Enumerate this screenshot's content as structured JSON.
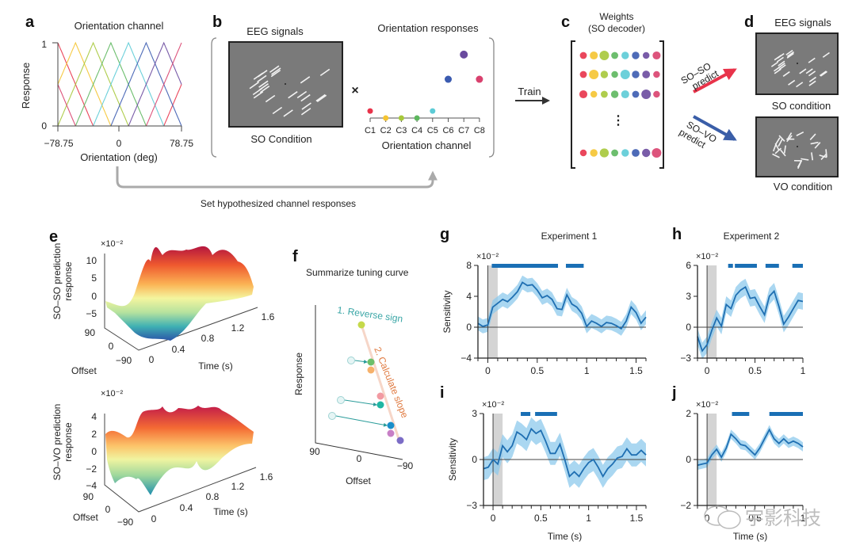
{
  "panels": {
    "a": {
      "label": "a",
      "title": "Orientation channel",
      "ylabel": "Response",
      "xlabel": "Orientation (deg)",
      "xticks": [
        "−78.75",
        "0",
        "78.75"
      ],
      "yticks": [
        "0",
        "1"
      ]
    },
    "b": {
      "label": "b",
      "eeg_title": "EEG signals",
      "eeg_caption": "SO Condition",
      "times": "×",
      "resp_title": "Orientation responses",
      "resp_xlabel": "Orientation channel",
      "channels": [
        "C1",
        "C2",
        "C3",
        "C4",
        "C5",
        "C6",
        "C7",
        "C8"
      ],
      "feedback_label": "Set hypothesized channel responses"
    },
    "train": {
      "label": "Train"
    },
    "c": {
      "label": "c",
      "title_line1": "Weights",
      "title_line2": "(SO decoder)",
      "ellipsis": "⋮"
    },
    "d": {
      "label": "d",
      "title": "EEG signals",
      "so_caption": "SO condition",
      "vo_caption": "VO condition",
      "arrow_so_line1": "SO–SO",
      "arrow_so_line2": "predict",
      "arrow_vo_line1": "SO–VO",
      "arrow_vo_line2": "predict"
    },
    "e": {
      "label": "e",
      "top_ylabel1": "SO–SO prediction",
      "top_ylabel2": "response",
      "top_scale": "×10⁻²",
      "top_zticks": [
        "10",
        "5",
        "0",
        "−5"
      ],
      "bottom_ylabel1": "SO–VO prediction",
      "bottom_ylabel2": "response",
      "bottom_scale": "×10⁻²",
      "bottom_zticks": [
        "4",
        "2",
        "0",
        "−2",
        "−4"
      ],
      "offset_label": "Offset",
      "offset_ticks": [
        "90",
        "0",
        "−90"
      ],
      "time_label": "Time (s)",
      "time_ticks": [
        "0",
        "0.4",
        "0.8",
        "1.2",
        "1.6"
      ]
    },
    "f": {
      "label": "f",
      "title": "Summarize tuning curve",
      "step1": "1. Reverse sign",
      "step2": "2. Calculate slope",
      "ylabel": "Response",
      "xlabel": "Offset",
      "xticks": [
        "90",
        "0",
        "−90"
      ]
    },
    "g": {
      "label": "g",
      "title": "Experiment 1"
    },
    "h": {
      "label": "h",
      "title": "Experiment 2"
    },
    "i": {
      "label": "i"
    },
    "j": {
      "label": "j"
    }
  },
  "colors": {
    "red": "#e8334a",
    "blue": "#3a5ea8",
    "line": "#1f6fb2",
    "band": "#8ec9ec",
    "sig": "#1a6fb5",
    "gray_box": "#7a7a7a"
  },
  "watermark": {
    "text": "宇影科技"
  },
  "chart_data": [
    {
      "id": "a",
      "type": "line",
      "title": "Orientation channel",
      "xlabel": "Orientation (deg)",
      "ylabel": "Response",
      "xlim": [
        -78.75,
        78.75
      ],
      "ylim": [
        0,
        1
      ],
      "series": [
        {
          "name": "C1",
          "peak": -78.75,
          "color": "#e8334a"
        },
        {
          "name": "C2",
          "peak": -56.25,
          "color": "#f5c431"
        },
        {
          "name": "C3",
          "peak": -33.75,
          "color": "#a6c83a"
        },
        {
          "name": "C4",
          "peak": -11.25,
          "color": "#5db75e"
        },
        {
          "name": "C5",
          "peak": 11.25,
          "color": "#5ccbd6"
        },
        {
          "name": "C6",
          "peak": 33.75,
          "color": "#3b5bb0"
        },
        {
          "name": "C7",
          "peak": 56.25,
          "color": "#6a4a9e"
        },
        {
          "name": "C8",
          "peak": 78.75,
          "color": "#d9416e"
        }
      ]
    },
    {
      "id": "b",
      "type": "scatter",
      "title": "Orientation responses",
      "xlabel": "Orientation channel",
      "categories": [
        "C1",
        "C2",
        "C3",
        "C4",
        "C5",
        "C6",
        "C7",
        "C8"
      ],
      "values": [
        0.1,
        0.0,
        0.0,
        0.0,
        0.1,
        0.55,
        0.9,
        0.55
      ],
      "colors": [
        "#e8334a",
        "#f5c431",
        "#a6c83a",
        "#5db75e",
        "#5ccbd6",
        "#3b5bb0",
        "#6a4a9e",
        "#d9416e"
      ]
    },
    {
      "id": "c",
      "type": "scatter",
      "title": "Weights (SO decoder)",
      "rows": [
        [
          0.5,
          0.7,
          1.0,
          0.5,
          0.6,
          0.6,
          0.45,
          0.7
        ],
        [
          0.5,
          1.0,
          0.6,
          0.45,
          1.0,
          0.6,
          0.65,
          0.45
        ],
        [
          0.7,
          0.45,
          0.5,
          0.6,
          0.7,
          0.5,
          1.0,
          0.45
        ],
        [
          0.45,
          0.6,
          0.9,
          0.5,
          0.6,
          0.65,
          0.75,
          1.0
        ]
      ],
      "colors": [
        "#e8334a",
        "#f5c431",
        "#a6c83a",
        "#5db75e",
        "#5ccbd6",
        "#3b5bb0",
        "#6a4a9e",
        "#d9416e"
      ]
    },
    {
      "id": "g",
      "type": "line",
      "title": "Experiment 1",
      "xlabel": "",
      "ylabel": "Sensitivity",
      "scale": "×10⁻²",
      "xlim": [
        -0.1,
        1.6
      ],
      "ylim": [
        -4,
        8
      ],
      "xticks": [
        0,
        0.5,
        1,
        1.5
      ],
      "yticks": [
        -4,
        0,
        4,
        8
      ],
      "x": [
        -0.1,
        -0.05,
        0,
        0.05,
        0.1,
        0.15,
        0.2,
        0.25,
        0.3,
        0.35,
        0.4,
        0.45,
        0.5,
        0.55,
        0.6,
        0.65,
        0.7,
        0.75,
        0.8,
        0.85,
        0.9,
        0.95,
        1.0,
        1.05,
        1.1,
        1.15,
        1.2,
        1.25,
        1.3,
        1.35,
        1.4,
        1.45,
        1.5,
        1.55,
        1.6
      ],
      "y": [
        0.5,
        0.1,
        0.3,
        2.6,
        3.1,
        3.6,
        3.3,
        3.9,
        4.6,
        5.8,
        5.4,
        5.5,
        4.8,
        3.8,
        4.1,
        3.6,
        2.4,
        2.3,
        4.2,
        3.0,
        2.6,
        1.8,
        0.1,
        0.8,
        0.5,
        0.1,
        0.6,
        0.5,
        0.2,
        -0.2,
        0.8,
        2.6,
        1.9,
        0.5,
        1.3
      ],
      "band": 0.9,
      "significance": [
        [
          0.04,
          0.71
        ],
        [
          0.79,
          0.97
        ]
      ],
      "shaded_window": [
        0,
        0.1
      ]
    },
    {
      "id": "h",
      "type": "line",
      "title": "Experiment 2",
      "xlabel": "",
      "ylabel": "",
      "scale": "×10⁻²",
      "xlim": [
        -0.1,
        1.0
      ],
      "ylim": [
        -3,
        6
      ],
      "xticks": [
        0,
        0.5,
        1
      ],
      "yticks": [
        -3,
        0,
        3,
        6
      ],
      "x": [
        -0.1,
        -0.05,
        0,
        0.05,
        0.1,
        0.15,
        0.2,
        0.25,
        0.3,
        0.35,
        0.4,
        0.45,
        0.5,
        0.55,
        0.6,
        0.65,
        0.7,
        0.75,
        0.8,
        0.85,
        0.9,
        0.95,
        1.0
      ],
      "y": [
        -0.9,
        -2.3,
        -1.7,
        -0.3,
        0.9,
        0.1,
        2.2,
        1.8,
        3.1,
        3.6,
        3.9,
        2.8,
        2.9,
        2.0,
        1.2,
        3.0,
        3.5,
        2.0,
        0.3,
        1.0,
        1.8,
        2.6,
        2.5
      ],
      "band": 0.8,
      "significance": [
        [
          0.22,
          0.27
        ],
        [
          0.29,
          0.52
        ],
        [
          0.61,
          0.75
        ],
        [
          0.89,
          1.0
        ]
      ],
      "shaded_window": [
        0,
        0.1
      ]
    },
    {
      "id": "i",
      "type": "line",
      "xlabel": "Time (s)",
      "ylabel": "Sensitivity",
      "scale": "×10⁻²",
      "xlim": [
        -0.1,
        1.6
      ],
      "ylim": [
        -3,
        3
      ],
      "xticks": [
        0,
        0.5,
        1,
        1.5
      ],
      "yticks": [
        -3,
        0,
        3
      ],
      "x": [
        -0.1,
        -0.05,
        0,
        0.05,
        0.1,
        0.15,
        0.2,
        0.25,
        0.3,
        0.35,
        0.4,
        0.45,
        0.5,
        0.55,
        0.6,
        0.65,
        0.7,
        0.75,
        0.8,
        0.85,
        0.9,
        0.95,
        1.0,
        1.05,
        1.1,
        1.15,
        1.2,
        1.25,
        1.3,
        1.35,
        1.4,
        1.45,
        1.5,
        1.55,
        1.6
      ],
      "y": [
        -0.6,
        -0.5,
        0.0,
        -0.3,
        0.9,
        0.5,
        0.9,
        1.8,
        1.6,
        1.3,
        2.0,
        1.7,
        1.9,
        1.2,
        0.4,
        0.4,
        1.0,
        0.0,
        -1.1,
        -0.8,
        -1.1,
        -0.6,
        -0.2,
        0.0,
        -0.5,
        -1.1,
        -0.6,
        -0.3,
        0.1,
        0.2,
        0.7,
        0.3,
        0.3,
        0.6,
        0.3
      ],
      "band": 0.75,
      "significance": [
        [
          0.29,
          0.39
        ],
        [
          0.44,
          0.67
        ]
      ],
      "shaded_window": [
        0,
        0.1
      ]
    },
    {
      "id": "j",
      "type": "line",
      "xlabel": "Time (s)",
      "ylabel": "",
      "scale": "×10⁻²",
      "xlim": [
        -0.1,
        1.0
      ],
      "ylim": [
        -2,
        2
      ],
      "xticks": [
        0,
        0.5,
        1
      ],
      "yticks": [
        -2,
        0,
        2
      ],
      "x": [
        -0.1,
        -0.05,
        0,
        0.05,
        0.1,
        0.15,
        0.2,
        0.25,
        0.3,
        0.35,
        0.4,
        0.45,
        0.5,
        0.55,
        0.6,
        0.65,
        0.7,
        0.75,
        0.8,
        0.85,
        0.9,
        0.95,
        1.0
      ],
      "y": [
        -0.25,
        -0.2,
        -0.15,
        0.2,
        0.45,
        0.1,
        0.5,
        1.1,
        0.9,
        0.65,
        0.6,
        0.4,
        0.2,
        0.5,
        0.9,
        1.3,
        0.9,
        0.7,
        0.9,
        0.7,
        0.8,
        0.7,
        0.55
      ],
      "band": 0.2,
      "significance": [
        [
          0.26,
          0.44
        ],
        [
          0.65,
          1.0
        ]
      ],
      "shaded_window": [
        0,
        0.1
      ]
    }
  ]
}
